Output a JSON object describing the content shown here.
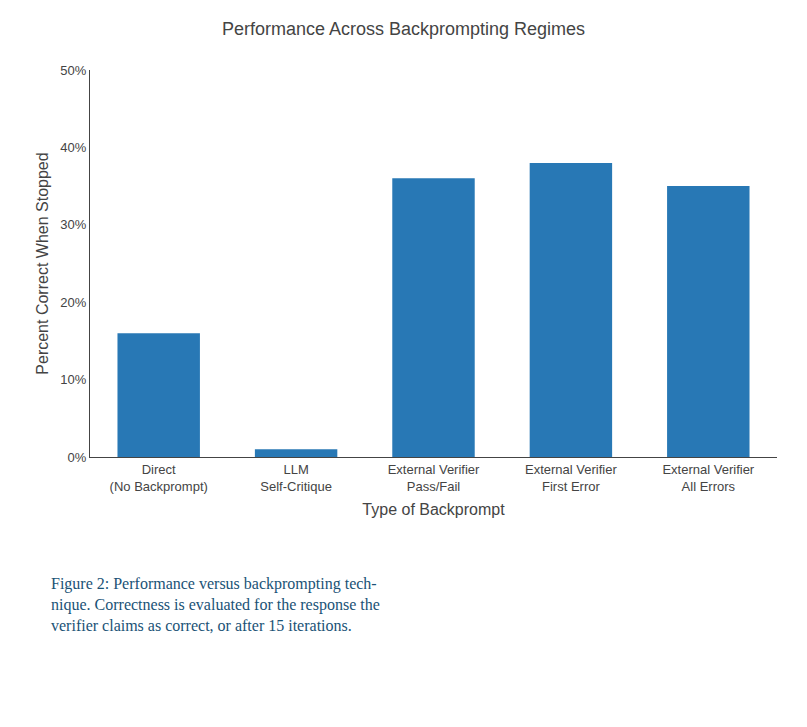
{
  "chart_data": {
    "type": "bar",
    "title": "Performance Across Backprompting Regimes",
    "xlabel": "Type of Backprompt",
    "ylabel": "Percent Correct When Stopped",
    "categories": [
      "Direct\n(No Backprompt)",
      "LLM\nSelf-Critique",
      "External Verifier\nPass/Fail",
      "External Verifier\nFirst Error",
      "External Verifier\nAll Errors"
    ],
    "values": [
      0.16,
      0.01,
      0.36,
      0.38,
      0.35
    ],
    "color": "#2878b5",
    "ylim": [
      0,
      0.5
    ],
    "yticks": [
      {
        "value": 0.0,
        "label": "0%"
      },
      {
        "value": 0.1,
        "label": "10%"
      },
      {
        "value": 0.2,
        "label": "20%"
      },
      {
        "value": 0.3,
        "label": "30%"
      },
      {
        "value": 0.4,
        "label": "40%"
      },
      {
        "value": 0.5,
        "label": "50%"
      }
    ],
    "grid": false,
    "annotations": [
      "Figure 2: Performance versus backprompting tech-",
      "nique. Correctness is evaluated for the response the",
      "verifier claims as correct, or after 15 iterations."
    ]
  }
}
